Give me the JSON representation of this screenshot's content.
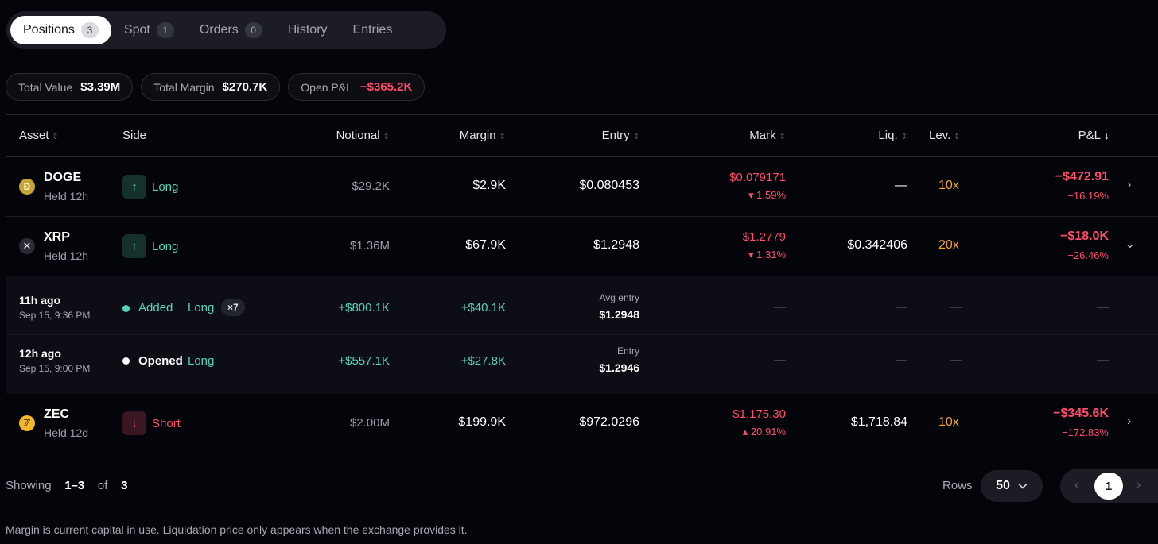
{
  "tabs": [
    {
      "label": "Positions",
      "count": "3"
    },
    {
      "label": "Spot",
      "count": "1"
    },
    {
      "label": "Orders",
      "count": "0"
    },
    {
      "label": "History",
      "count": ""
    },
    {
      "label": "Entries",
      "count": ""
    }
  ],
  "summary": {
    "total_value_label": "Total Value",
    "total_value": "$3.39M",
    "total_margin_label": "Total Margin",
    "total_margin": "$270.7K",
    "open_pnl_label": "Open P&L",
    "open_pnl": "−$365.2K"
  },
  "columns": {
    "asset": "Asset",
    "side": "Side",
    "notional": "Notional",
    "margin": "Margin",
    "entry": "Entry",
    "mark": "Mark",
    "liq": "Liq.",
    "lev": "Lev.",
    "pnl": "P&L"
  },
  "positions": [
    {
      "symbol": "DOGE",
      "coin_glyph": "Đ",
      "held": "Held 12h",
      "side": "Long",
      "notional": "$29.2K",
      "margin": "$2.9K",
      "entry": "$0.080453",
      "mark": "$0.079171",
      "mark_change": "▾ 1.59%",
      "liq": "—",
      "lev": "10x",
      "pnl": "−$472.91",
      "pnl_pct": "−16.19%",
      "expand": "›"
    },
    {
      "symbol": "XRP",
      "coin_glyph": "✕",
      "held": "Held 12h",
      "side": "Long",
      "notional": "$1.36M",
      "margin": "$67.9K",
      "entry": "$1.2948",
      "mark": "$1.2779",
      "mark_change": "▾ 1.31%",
      "liq": "$0.342406",
      "lev": "20x",
      "pnl": "−$18.0K",
      "pnl_pct": "−26.46%",
      "expand": "⌄"
    },
    {
      "symbol": "ZEC",
      "coin_glyph": "ℤ",
      "held": "Held 12d",
      "side": "Short",
      "notional": "$2.00M",
      "margin": "$199.9K",
      "entry": "$972.0296",
      "mark": "$1,175.30",
      "mark_change": "▴ 20.91%",
      "liq": "$1,718.84",
      "lev": "10x",
      "pnl": "−$345.6K",
      "pnl_pct": "−172.83%",
      "expand": "›"
    }
  ],
  "entries": [
    {
      "time_ago": "11h ago",
      "timestamp": "Sep 15, 9:36 PM",
      "action": "Added",
      "side": "Long",
      "multiplier": "×7",
      "notional": "+$800.1K",
      "margin": "+$40.1K",
      "entry_label": "Avg entry",
      "entry_value": "$1.2948",
      "dash": "—"
    },
    {
      "time_ago": "12h ago",
      "timestamp": "Sep 15, 9:00 PM",
      "action": "Opened",
      "side": "Long",
      "multiplier": "",
      "notional": "+$557.1K",
      "margin": "+$27.8K",
      "entry_label": "Entry",
      "entry_value": "$1.2946",
      "dash": "—"
    }
  ],
  "footer": {
    "showing_label": "Showing",
    "range": "1–3",
    "of_label": "of",
    "total": "3",
    "rows_label": "Rows",
    "rows_value": "50",
    "current_page": "1",
    "prev": "‹",
    "next": "›",
    "note": "Margin is current capital in use. Liquidation price only appears when the exchange provides it."
  },
  "icons": {
    "sort": "sort-icon",
    "arrow_up": "arrow-up-icon",
    "arrow_down": "arrow-down-icon",
    "chevron": "chevron-icon"
  },
  "colors": {
    "positive": "#56d3b8",
    "negative": "#ff4d6a",
    "leverage": "#f5a524",
    "background": "#04050b"
  }
}
